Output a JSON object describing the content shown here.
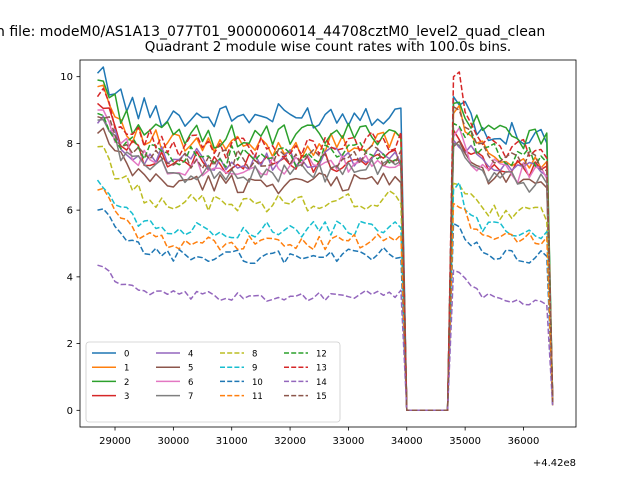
{
  "figure": {
    "suptitle": "n file: modeM0/AS1A13_077T01_9000006014_44708cztM0_level2_quad_clean"
  },
  "chart_data": {
    "type": "line",
    "title": "Quadrant 2 module wise count rates with 100.0s bins.",
    "xlabel": "",
    "ylabel": "",
    "x_offset_label": "+4.42e8",
    "xlim": [
      28400,
      36900
    ],
    "ylim": [
      -0.5,
      10.5
    ],
    "xticks": [
      29000,
      30000,
      31000,
      32000,
      33000,
      34000,
      35000,
      36000
    ],
    "xtick_labels": [
      "29000",
      "30000",
      "31000",
      "32000",
      "33000",
      "34000",
      "35000",
      "36000"
    ],
    "yticks": [
      0,
      2,
      4,
      6,
      8,
      10
    ],
    "ytick_labels": [
      "0",
      "2",
      "4",
      "6",
      "8",
      "10"
    ],
    "grid": false,
    "legend_placement": "lower-left",
    "legend_columns": 4,
    "x_segments": [
      {
        "start": 28700,
        "step": 100,
        "count": 54
      },
      {
        "start": 34100,
        "step": 100,
        "count": 7
      },
      {
        "start": 34800,
        "step": 100,
        "count": 18
      }
    ],
    "colors": [
      "#1f77b4",
      "#ff7f0e",
      "#2ca02c",
      "#d62728",
      "#9467bd",
      "#8c564b",
      "#e377c2",
      "#7f7f7f",
      "#bcbd22",
      "#17becf"
    ],
    "series": [
      {
        "name": "0",
        "style": "solid",
        "base": 8.8,
        "first": 10.1,
        "peak": 9.4,
        "final": 8.3,
        "end": 0.3
      },
      {
        "name": "1",
        "style": "solid",
        "base": 7.9,
        "first": 9.7,
        "peak": 8.9,
        "final": 7.5,
        "end": 0.3
      },
      {
        "name": "2",
        "style": "solid",
        "base": 8.2,
        "first": 9.9,
        "peak": 9.2,
        "final": 8.2,
        "end": 0.3
      },
      {
        "name": "3",
        "style": "solid",
        "base": 7.4,
        "first": 9.2,
        "peak": 8.4,
        "final": 7.2,
        "end": 0.25
      },
      {
        "name": "4",
        "style": "solid",
        "base": 7.5,
        "first": 8.6,
        "peak": 8.1,
        "final": 7.2,
        "end": 0.25
      },
      {
        "name": "5",
        "style": "solid",
        "base": 6.8,
        "first": 8.3,
        "peak": 7.9,
        "final": 6.9,
        "end": 0.2
      },
      {
        "name": "6",
        "style": "solid",
        "base": 7.3,
        "first": 9.0,
        "peak": 8.2,
        "final": 7.1,
        "end": 0.25
      },
      {
        "name": "7",
        "style": "solid",
        "base": 7.1,
        "first": 8.7,
        "peak": 8.0,
        "final": 6.8,
        "end": 0.2
      },
      {
        "name": "8",
        "style": "dashed",
        "base": 6.2,
        "first": 7.9,
        "peak": 6.8,
        "final": 5.9,
        "end": 0.2
      },
      {
        "name": "9",
        "style": "dashed",
        "base": 5.4,
        "first": 6.9,
        "peak": 6.6,
        "final": 5.3,
        "end": 0.2
      },
      {
        "name": "10",
        "style": "dashed",
        "base": 4.6,
        "first": 6.0,
        "peak": 5.6,
        "final": 4.6,
        "end": 0.15
      },
      {
        "name": "11",
        "style": "dashed",
        "base": 5.0,
        "first": 6.6,
        "peak": 6.2,
        "final": 5.1,
        "end": 0.15
      },
      {
        "name": "12",
        "style": "dashed",
        "base": 7.6,
        "first": 8.9,
        "peak": 8.6,
        "final": 7.6,
        "end": 0.25
      },
      {
        "name": "13",
        "style": "dashed",
        "base": 7.9,
        "first": 9.4,
        "peak": 10.0,
        "final": 7.8,
        "end": 0.25
      },
      {
        "name": "14",
        "style": "dashed",
        "base": 3.4,
        "first": 4.35,
        "peak": 4.2,
        "final": 3.3,
        "end": 0.1
      },
      {
        "name": "15",
        "style": "dashed",
        "base": 7.5,
        "first": 8.8,
        "peak": 9.1,
        "final": 7.5,
        "end": 0.25
      }
    ]
  }
}
